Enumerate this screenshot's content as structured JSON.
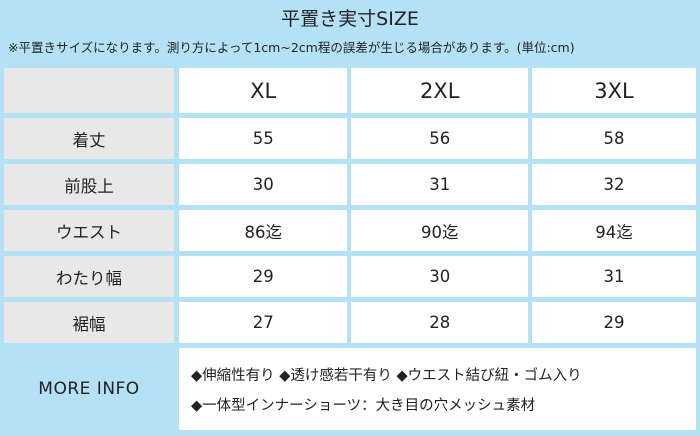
{
  "title": "平置き実寸SIZE",
  "note": "※平置きサイズになります。測り方によって1cm~2cm程の誤差が生じる場合があります。(単位:cm)",
  "table": {
    "columns": [
      "XL",
      "2XL",
      "3XL"
    ],
    "rows": [
      {
        "label": "着丈",
        "values": [
          "55",
          "56",
          "58"
        ]
      },
      {
        "label": "前股上",
        "values": [
          "30",
          "31",
          "32"
        ]
      },
      {
        "label": "ウエスト",
        "values": [
          "86迄",
          "90迄",
          "94迄"
        ]
      },
      {
        "label": "わたり幅",
        "values": [
          "29",
          "30",
          "31"
        ]
      },
      {
        "label": "裾幅",
        "values": [
          "27",
          "28",
          "29"
        ]
      }
    ]
  },
  "more_info": {
    "label": "MORE INFO",
    "lines": [
      "◆伸縮性有り ◆透け感若干有り ◆ウエスト結び紐・ゴム入り",
      "◆一体型インナーショーツ：大き目の穴メッシュ素材"
    ]
  },
  "colors": {
    "background": "#b5e1f6",
    "header_cell": "#e8e8e8",
    "cell": "#ffffff"
  }
}
